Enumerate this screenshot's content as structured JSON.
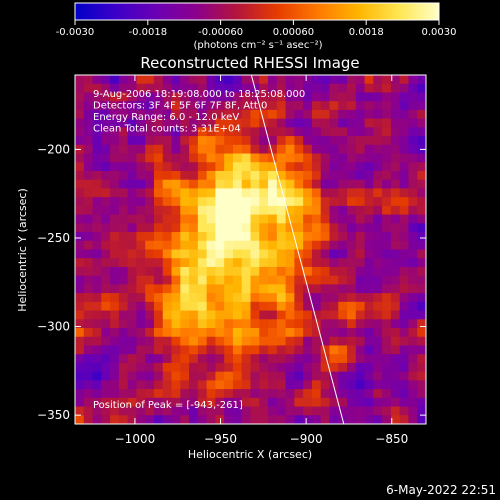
{
  "chart_data": {
    "type": "heatmap",
    "title": "Reconstructed RHESSI Image",
    "xlabel": "Heliocentric X (arcsec)",
    "ylabel": "Heliocentric Y (arcsec)",
    "xlim": [
      -1035,
      -830
    ],
    "ylim": [
      -355,
      -158
    ],
    "x_ticks": [
      -1000,
      -950,
      -900,
      -850
    ],
    "x_tick_labels": [
      "−1000",
      "−950",
      "−900",
      "−850"
    ],
    "y_ticks": [
      -200,
      -250,
      -300,
      -350
    ],
    "y_tick_labels": [
      "−200",
      "−250",
      "−300",
      "−350"
    ],
    "colorbar": {
      "range": [
        -0.003,
        0.003
      ],
      "ticks": [
        "-0.0030",
        "-0.0018",
        "-0.00060",
        "0.00060",
        "0.0018",
        "0.0030"
      ],
      "units": "(photons cm⁻² s⁻¹ asec⁻²)",
      "colors": [
        "#0000c8",
        "#3c00c8",
        "#6a00b4",
        "#8c008c",
        "#b4143c",
        "#e63c00",
        "#ff7800",
        "#ffb400",
        "#ffe650",
        "#ffffc8"
      ]
    },
    "annotations": [
      "9-Aug-2006 18:19:08.000 to 18:25:08.000",
      "Detectors: 3F 4F 5F 6F 7F 8F, Att 0",
      "Energy Range: 6.0 - 12.0 keV",
      "Clean     Total counts: 3.31E+04"
    ],
    "peak_label": "Position of Peak = [-943,-261]",
    "peak": [
      -943,
      -261
    ],
    "limb_line": [
      [
        -932,
        -158
      ],
      [
        -878,
        -355
      ]
    ],
    "grid": false
  },
  "footer": {
    "timestamp": "6-May-2022 22:51"
  }
}
